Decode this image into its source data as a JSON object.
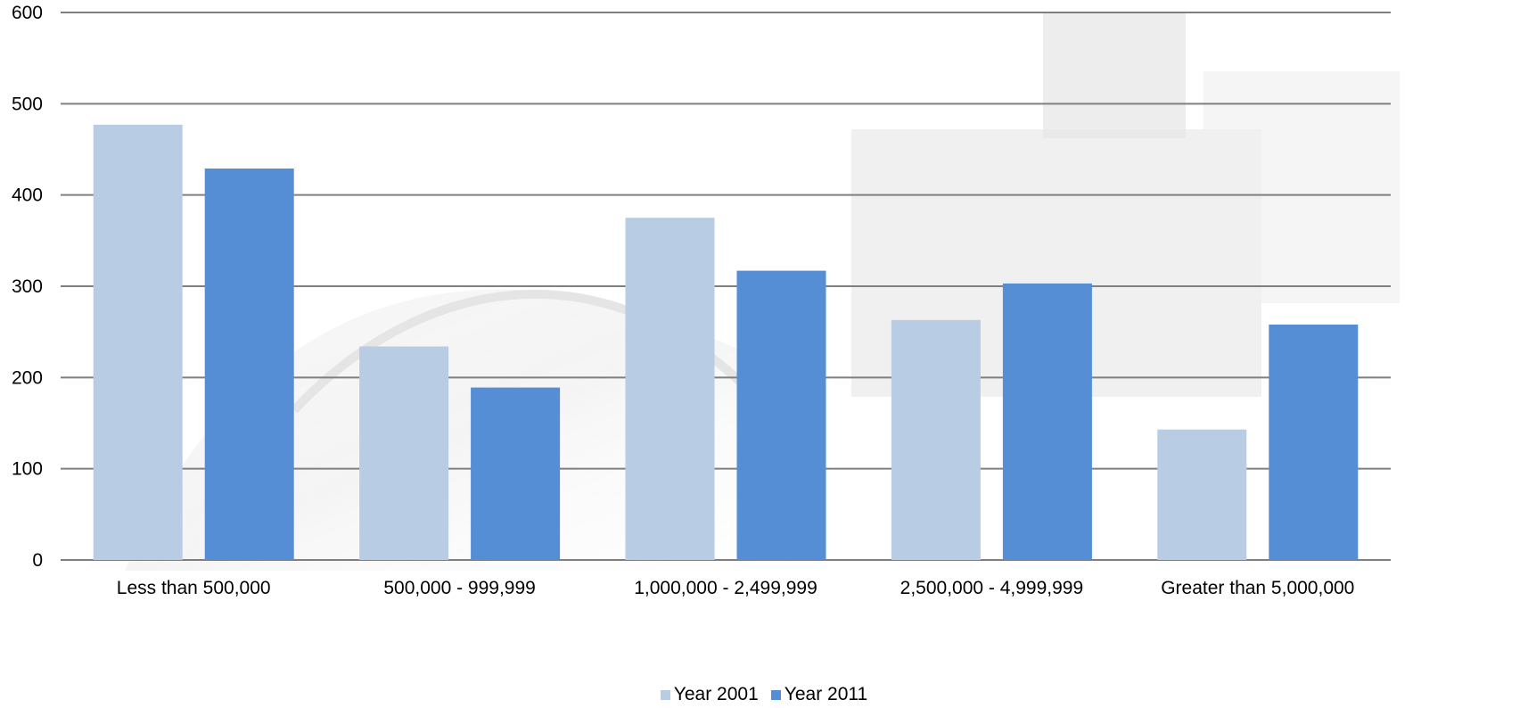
{
  "chart_data": {
    "type": "bar",
    "categories": [
      "Less than 500,000",
      "500,000 - 999,999",
      "1,000,000  - 2,499,999",
      "2,500,000  - 4,999,999",
      "Greater  than 5,000,000"
    ],
    "series": [
      {
        "name": "Year 2001",
        "color": "#b8cce4",
        "values": [
          477,
          234,
          375,
          263,
          143
        ]
      },
      {
        "name": "Year 2011",
        "color": "#558ed5",
        "values": [
          429,
          189,
          317,
          303,
          258
        ]
      }
    ],
    "ylim": [
      0,
      600
    ],
    "yticks": [
      0,
      100,
      200,
      300,
      400,
      500,
      600
    ],
    "grid": true,
    "legend_position": "bottom",
    "title": "",
    "xlabel": "",
    "ylabel": ""
  }
}
